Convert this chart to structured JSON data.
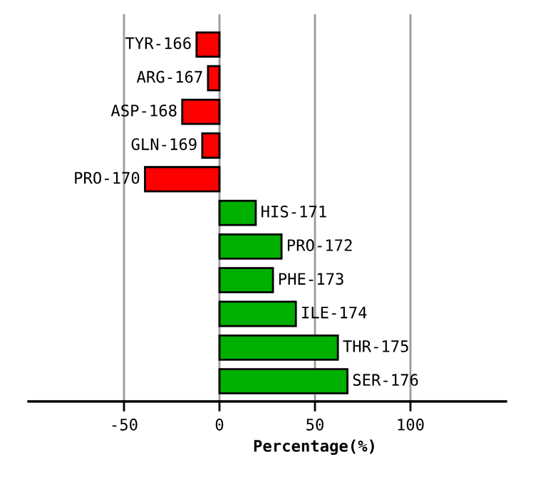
{
  "chart_data": {
    "type": "bar",
    "orientation": "horizontal",
    "xlabel": "Percentage(%)",
    "categories": [
      "TYR-166",
      "ARG-167",
      "ASP-168",
      "GLN-169",
      "PRO-170",
      "HIS-171",
      "PRO-172",
      "PHE-173",
      "ILE-174",
      "THR-175",
      "SER-176"
    ],
    "values": [
      -12,
      -6,
      -19.5,
      -9,
      -39,
      19,
      32.5,
      28,
      40,
      62,
      67
    ],
    "colors": [
      "#ff0000",
      "#ff0000",
      "#ff0000",
      "#ff0000",
      "#ff0000",
      "#00b000",
      "#00b000",
      "#00b000",
      "#00b000",
      "#00b000",
      "#00b000"
    ],
    "xlim": [
      -100,
      150
    ],
    "xticks": [
      -50,
      0,
      50,
      100
    ],
    "grid": "x",
    "legend": false
  }
}
